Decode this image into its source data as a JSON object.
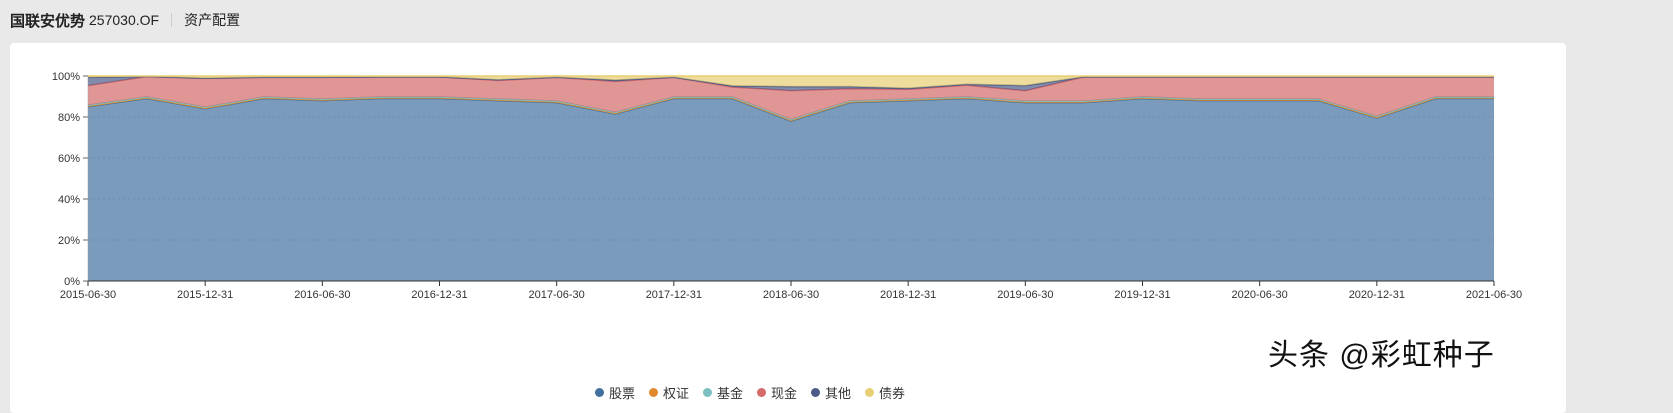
{
  "header": {
    "fund_name": "国联安优势",
    "fund_code": "257030.OF",
    "section": "资产配置"
  },
  "watermark": "头条 @彩虹种子",
  "chart_data": {
    "type": "area",
    "stacked": true,
    "title": "",
    "xlabel": "",
    "ylabel": "",
    "ylim": [
      0,
      100
    ],
    "y_ticks": [
      "0%",
      "20%",
      "40%",
      "60%",
      "80%",
      "100%"
    ],
    "x_tick_labels": [
      "2015-06-30",
      "2015-12-31",
      "2016-06-30",
      "2016-12-31",
      "2017-06-30",
      "2017-12-31",
      "2018-06-30",
      "2018-12-31",
      "2019-06-30",
      "2019-12-31",
      "2020-06-30",
      "2020-12-31",
      "2021-06-30"
    ],
    "x": [
      "2015-06-30",
      "2015-09-30",
      "2015-12-31",
      "2016-03-31",
      "2016-06-30",
      "2016-09-30",
      "2016-12-31",
      "2017-03-31",
      "2017-06-30",
      "2017-09-30",
      "2017-12-31",
      "2018-03-31",
      "2018-06-30",
      "2018-09-30",
      "2018-12-31",
      "2019-03-31",
      "2019-06-30",
      "2019-09-30",
      "2019-12-31",
      "2020-03-31",
      "2020-06-30",
      "2020-09-30",
      "2020-12-31",
      "2021-03-31",
      "2021-06-30"
    ],
    "grid": true,
    "legend_position": "bottom",
    "series": [
      {
        "name": "股票",
        "color": "#41709f",
        "values": [
          85,
          89,
          84,
          89,
          88,
          89,
          89,
          88,
          87,
          81.5,
          89,
          89,
          78,
          87,
          88,
          89,
          87,
          87,
          89,
          88,
          88,
          88,
          79.5,
          89,
          89
        ]
      },
      {
        "name": "权证",
        "color": "#e08a2c",
        "values": [
          0.3,
          0.3,
          0.3,
          0.3,
          0.3,
          0.3,
          0.3,
          0.3,
          0.3,
          0.3,
          0.3,
          0.3,
          0.3,
          0.3,
          0.3,
          0.3,
          0.3,
          0.3,
          0.3,
          0.3,
          0.3,
          0.3,
          0.3,
          0.3,
          0.3
        ]
      },
      {
        "name": "基金",
        "color": "#7bbfc0",
        "values": [
          0.5,
          0.5,
          0.5,
          0.5,
          0.5,
          0.5,
          0.5,
          0.5,
          0.5,
          0.5,
          0.5,
          0.5,
          0.5,
          0.5,
          0.5,
          0.5,
          0.5,
          0.5,
          0.5,
          0.5,
          0.5,
          0.5,
          0.5,
          0.5,
          0.5
        ]
      },
      {
        "name": "现金",
        "color": "#d46a6a",
        "values": [
          9.5,
          9.9,
          14,
          9.5,
          10.5,
          9.7,
          9.7,
          9,
          11.5,
          15,
          9.5,
          4.8,
          14,
          6,
          4.7,
          5.7,
          5,
          11.7,
          9.7,
          10.7,
          10.7,
          10.7,
          19.2,
          9.7,
          9.7
        ]
      },
      {
        "name": "其他",
        "color": "#4b5a87",
        "values": [
          4,
          0.1,
          0.1,
          0.1,
          0.1,
          0.1,
          0.1,
          0.4,
          0.1,
          0.7,
          0.1,
          0.6,
          2,
          1,
          0.5,
          0.5,
          2.5,
          0.1,
          0.1,
          0.1,
          0.1,
          0.1,
          0.1,
          0.1,
          0.1
        ]
      },
      {
        "name": "债券",
        "color": "#e8cf73",
        "values": [
          0.7,
          0.2,
          1.1,
          0.6,
          0.6,
          0.4,
          0.4,
          1.8,
          0.6,
          2,
          0.6,
          4.8,
          5.2,
          5.2,
          6,
          4,
          4.7,
          0.6,
          0.4,
          0.4,
          0.4,
          0.4,
          0.4,
          0.4,
          0.4
        ]
      }
    ]
  }
}
